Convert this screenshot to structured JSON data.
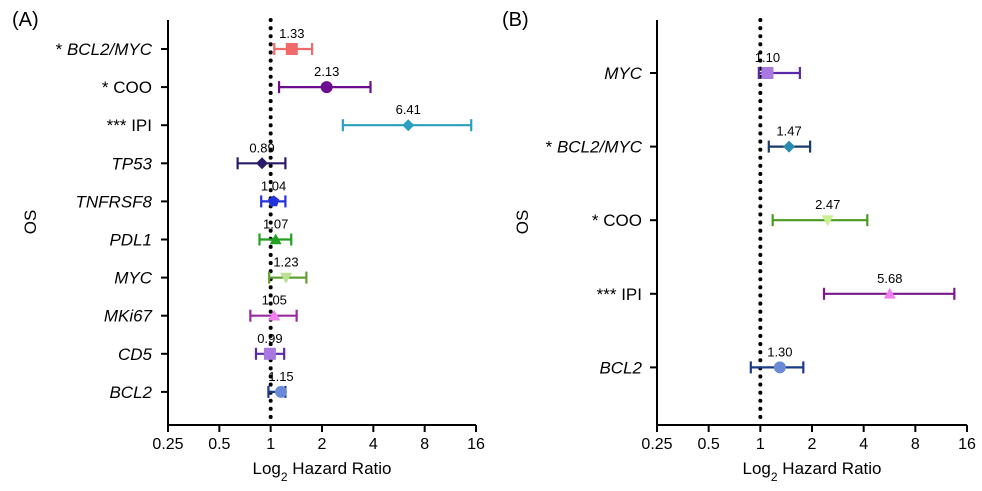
{
  "chart_data": [
    {
      "type": "forest",
      "panel_label": "(A)",
      "ylabel": "OS",
      "xlabel": "Log",
      "xlabel_sub": "2",
      "xlabel_rest": " Hazard Ratio",
      "x_scale": "log2",
      "xlim": [
        0.25,
        16
      ],
      "xticks": [
        0.25,
        0.5,
        1,
        2,
        4,
        8,
        16
      ],
      "xtick_labels": [
        "0.25",
        "0.5",
        "1",
        "2",
        "4",
        "8",
        "16"
      ],
      "reference_line": 1,
      "rows": [
        {
          "sig": "* ",
          "label": "BCL2/MYC",
          "italic": true,
          "hr": 1.33,
          "lo": 1.05,
          "hi": 1.75,
          "color": "#f06a6a",
          "marker": "square",
          "value_label": "1.33"
        },
        {
          "sig": "* ",
          "label": "COO",
          "italic": false,
          "hr": 2.13,
          "lo": 1.12,
          "hi": 3.85,
          "color": "#6b0d8e",
          "marker": "circle",
          "value_label": "2.13"
        },
        {
          "sig": "*** ",
          "label": "IPI",
          "italic": false,
          "hr": 6.41,
          "lo": 2.65,
          "hi": 15.0,
          "color": "#2aa0c0",
          "marker": "diamond",
          "value_label": "6.41"
        },
        {
          "sig": "",
          "label": "TP53",
          "italic": true,
          "hr": 0.89,
          "lo": 0.64,
          "hi": 1.22,
          "color": "#2a1a6a",
          "marker": "diamond",
          "value_label": "0.89"
        },
        {
          "sig": "",
          "label": "TNFRSF8",
          "italic": true,
          "hr": 1.04,
          "lo": 0.88,
          "hi": 1.22,
          "color": "#2233dd",
          "marker": "pentagon",
          "value_label": "1.04"
        },
        {
          "sig": "",
          "label": "PDL1",
          "italic": true,
          "hr": 1.07,
          "lo": 0.86,
          "hi": 1.32,
          "color": "#22a022",
          "marker": "triangle-up",
          "value_label": "1.07"
        },
        {
          "sig": "",
          "label": "MYC",
          "italic": true,
          "hr": 1.23,
          "lo": 0.98,
          "hi": 1.62,
          "color": "#62a030",
          "marker": "triangle-down",
          "value_label": "1.23",
          "fill": "#b8e090"
        },
        {
          "sig": "",
          "label": "MKi67",
          "italic": true,
          "hr": 1.05,
          "lo": 0.76,
          "hi": 1.42,
          "color": "#9a2aa0",
          "marker": "triangle-up",
          "value_label": "1.05",
          "fill": "#f080f0"
        },
        {
          "sig": "",
          "label": "CD5",
          "italic": true,
          "hr": 0.99,
          "lo": 0.82,
          "hi": 1.2,
          "color": "#5a2aa8",
          "marker": "square",
          "value_label": "0.99",
          "fill": "#a878e0"
        },
        {
          "sig": "",
          "label": "BCL2",
          "italic": true,
          "hr": 1.15,
          "lo": 0.97,
          "hi": 1.22,
          "color": "#1a3a8a",
          "marker": "circle",
          "value_label": "1.15",
          "fill": "#6a8ad8"
        }
      ]
    },
    {
      "type": "forest",
      "panel_label": "(B)",
      "ylabel": "OS",
      "xlabel": "Log",
      "xlabel_sub": "2",
      "xlabel_rest": " Hazard Ratio",
      "x_scale": "log2",
      "xlim": [
        0.25,
        16
      ],
      "xticks": [
        0.25,
        0.5,
        1,
        2,
        4,
        8,
        16
      ],
      "xtick_labels": [
        "0.25",
        "0.5",
        "1",
        "2",
        "4",
        "8",
        "16"
      ],
      "reference_line": 1,
      "rows": [
        {
          "sig": "",
          "label": "MYC",
          "italic": true,
          "hr": 1.1,
          "lo": 0.98,
          "hi": 1.7,
          "color": "#5a2aa8",
          "marker": "square",
          "value_label": "1.10",
          "fill": "#a878e0"
        },
        {
          "sig": "* ",
          "label": "BCL2/MYC",
          "italic": true,
          "hr": 1.47,
          "lo": 1.12,
          "hi": 1.95,
          "color": "#1a3a6a",
          "marker": "diamond",
          "value_label": "1.47",
          "fill": "#2a8ab0"
        },
        {
          "sig": "* ",
          "label": "COO",
          "italic": false,
          "hr": 2.47,
          "lo": 1.18,
          "hi": 4.2,
          "color": "#4a9a20",
          "marker": "triangle-down",
          "value_label": "2.47",
          "fill": "#c8f090"
        },
        {
          "sig": "*** ",
          "label": "IPI",
          "italic": false,
          "hr": 5.68,
          "lo": 2.35,
          "hi": 13.5,
          "color": "#7a1a8a",
          "marker": "triangle-up",
          "value_label": "5.68",
          "fill": "#f080f0"
        },
        {
          "sig": "",
          "label": "BCL2",
          "italic": true,
          "hr": 1.3,
          "lo": 0.88,
          "hi": 1.78,
          "color": "#1a3a8a",
          "marker": "circle",
          "value_label": "1.30",
          "fill": "#6a8ad8"
        }
      ]
    }
  ]
}
